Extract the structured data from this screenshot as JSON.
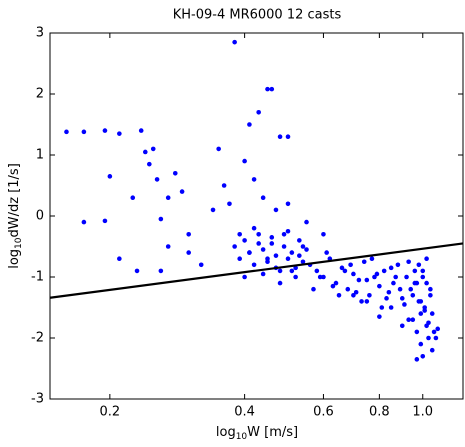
{
  "chart_data": {
    "type": "scatter",
    "title": "KH-09-4 MR6000 12 casts",
    "xlabel": {
      "base": "log",
      "sub": "10",
      "rest": "W [m/s]"
    },
    "ylabel": {
      "base": "log",
      "sub": "10",
      "rest": "dW/dz [1/s]"
    },
    "log_x": true,
    "xlim": [
      0.147,
      1.23
    ],
    "ylim": [
      -3,
      3
    ],
    "xticks": [
      0.2,
      0.4,
      0.6,
      0.8,
      {
        "value": 1,
        "label": "1.0"
      }
    ],
    "yticks": [
      -3,
      -2,
      -1,
      0,
      1,
      2,
      3
    ],
    "color": "#0000ff",
    "x": [
      0.16,
      0.175,
      0.195,
      0.21,
      0.235,
      0.2,
      0.175,
      0.195,
      0.21,
      0.225,
      0.24,
      0.25,
      0.245,
      0.255,
      0.26,
      0.27,
      0.28,
      0.29,
      0.3,
      0.23,
      0.26,
      0.27,
      0.3,
      0.32,
      0.35,
      0.36,
      0.37,
      0.34,
      0.38,
      0.39,
      0.41,
      0.43,
      0.45,
      0.46,
      0.48,
      0.5,
      0.4,
      0.42,
      0.44,
      0.47,
      0.5,
      0.55,
      0.6,
      0.38,
      0.39,
      0.4,
      0.41,
      0.42,
      0.43,
      0.44,
      0.45,
      0.46,
      0.47,
      0.48,
      0.49,
      0.5,
      0.51,
      0.52,
      0.53,
      0.54,
      0.55,
      0.4,
      0.42,
      0.44,
      0.46,
      0.48,
      0.5,
      0.52,
      0.54,
      0.41,
      0.43,
      0.45,
      0.47,
      0.49,
      0.51,
      0.53,
      0.56,
      0.58,
      0.6,
      0.62,
      0.64,
      0.66,
      0.68,
      0.7,
      0.72,
      0.74,
      0.76,
      0.78,
      0.8,
      0.82,
      0.84,
      0.86,
      0.88,
      0.9,
      0.92,
      0.94,
      0.96,
      0.98,
      0.57,
      0.61,
      0.65,
      0.69,
      0.73,
      0.77,
      0.81,
      0.85,
      0.89,
      0.93,
      0.97,
      0.59,
      0.63,
      0.67,
      0.71,
      0.75,
      0.79,
      0.83,
      0.87,
      0.91,
      0.95,
      0.99,
      0.95,
      0.97,
      0.99,
      1.0,
      1.01,
      1.02,
      1.03,
      1.04,
      1.05,
      1.06,
      0.98,
      1.0,
      1.02,
      1.04,
      0.96,
      0.99,
      1.01,
      1.03,
      1.05,
      1.07,
      1.08,
      1.0,
      1.02,
      0.97,
      0.93,
      0.9,
      0.85,
      0.8,
      0.75,
      0.7
    ],
    "values": [
      1.38,
      1.38,
      1.4,
      1.35,
      1.4,
      0.65,
      -0.1,
      -0.08,
      -0.7,
      0.3,
      1.05,
      1.1,
      0.85,
      0.6,
      -0.05,
      0.3,
      0.7,
      0.4,
      -0.3,
      -0.9,
      -0.9,
      -0.5,
      -0.6,
      -0.8,
      1.1,
      0.5,
      0.2,
      0.1,
      2.85,
      -0.3,
      1.5,
      1.7,
      2.08,
      2.08,
      1.3,
      1.3,
      0.9,
      0.6,
      0.3,
      0.1,
      0.2,
      -0.1,
      -0.3,
      -0.5,
      -0.7,
      -0.4,
      -0.6,
      -0.8,
      -0.3,
      -0.55,
      -0.75,
      -0.45,
      -0.65,
      -0.9,
      -0.5,
      -0.7,
      -0.6,
      -0.85,
      -0.4,
      -0.75,
      -0.55,
      -1.0,
      -0.2,
      -0.95,
      -0.35,
      -1.1,
      -0.25,
      -1.0,
      -0.5,
      -0.6,
      -0.45,
      -0.7,
      -0.85,
      -0.3,
      -0.9,
      -0.65,
      -0.8,
      -0.9,
      -1.0,
      -0.7,
      -1.1,
      -0.85,
      -1.2,
      -0.95,
      -1.05,
      -0.75,
      -1.3,
      -1.0,
      -1.15,
      -0.9,
      -1.25,
      -1.1,
      -0.8,
      -1.35,
      -1.0,
      -1.2,
      -0.9,
      -1.4,
      -1.2,
      -0.6,
      -1.3,
      -0.8,
      -1.4,
      -0.7,
      -1.5,
      -0.85,
      -1.2,
      -0.75,
      -1.1,
      -1.0,
      -1.15,
      -0.9,
      -1.25,
      -1.05,
      -0.95,
      -1.35,
      -1.0,
      -1.45,
      -1.3,
      -1.6,
      -1.7,
      -1.9,
      -2.1,
      -2.3,
      -1.5,
      -1.8,
      -2.0,
      -1.3,
      -1.6,
      -1.9,
      -0.8,
      -1.0,
      -0.7,
      -1.2,
      -1.1,
      -1.4,
      -1.55,
      -1.75,
      -2.2,
      -2.0,
      -1.85,
      -0.9,
      -1.1,
      -2.35,
      -1.7,
      -1.8,
      -1.5,
      -1.65,
      -1.4,
      -1.3
    ],
    "fit_line": {
      "x": [
        0.147,
        1.23
      ],
      "values": [
        -1.34,
        -0.45
      ],
      "color": "#000000"
    }
  }
}
